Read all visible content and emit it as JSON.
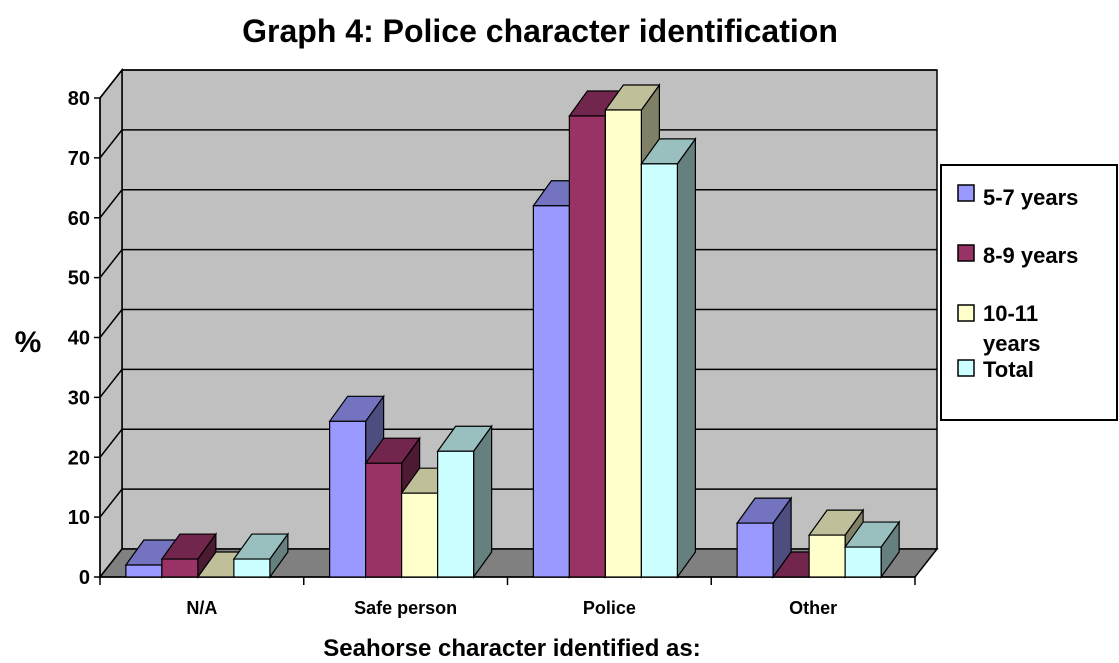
{
  "chart_data": {
    "type": "bar",
    "title": "Graph 4: Police character identification",
    "xlabel": "Seahorse character identified as:",
    "ylabel": "%",
    "ylim": [
      0,
      80
    ],
    "yticks": [
      0,
      10,
      20,
      30,
      40,
      50,
      60,
      70,
      80
    ],
    "categories": [
      "N/A",
      "Safe person",
      "Police",
      "Other"
    ],
    "series": [
      {
        "name": "5-7 years",
        "values": [
          2,
          26,
          62,
          9
        ],
        "color": "#9999ff"
      },
      {
        "name": "8-9 years",
        "values": [
          3,
          19,
          77,
          0
        ],
        "color": "#993366"
      },
      {
        "name": "10-11 years",
        "values": [
          0,
          14,
          78,
          7
        ],
        "color": "#ffffcc"
      },
      {
        "name": "Total",
        "values": [
          3,
          21,
          69,
          5
        ],
        "color": "#ccffff"
      }
    ],
    "grid": true,
    "legend_position": "right",
    "style": "3d clustered column",
    "wall_color": "#c0c0c0",
    "floor_color": "#808080"
  }
}
